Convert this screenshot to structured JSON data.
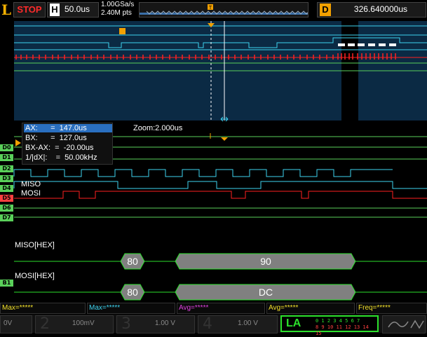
{
  "top": {
    "logo": "L",
    "run_state": "STOP",
    "hscale_label": "H",
    "hscale_value": "50.0us",
    "sample_rate": "1.00GSa/s",
    "memory_depth": "2.40M pts",
    "trigger_marker": "T",
    "delay_label": "D",
    "delay_value": "326.640000us"
  },
  "cursor": {
    "ax": "AX:      =  147.0us",
    "bx": "BX:      =  127.0us",
    "bxax": "BX-AX:  =  -20.00us",
    "inv": "1/|dX|:    =  50.00kHz"
  },
  "zoom": "Zoom:2.000us",
  "channels": {
    "d0": "D0",
    "d1": "D1",
    "d2": "D2",
    "d3": "D3",
    "d4": "D4",
    "d5": "D5",
    "d6": "D6",
    "d7": "D7",
    "b1": "B1"
  },
  "signals": {
    "miso": "MISO",
    "mosi": "MOSI"
  },
  "decode": {
    "miso_label": "MISO[HEX]",
    "mosi_label": "MOSI[HEX]",
    "miso_packets": [
      "80",
      "90"
    ],
    "mosi_packets": [
      "80",
      "DC"
    ]
  },
  "measurements": [
    "Max=*****",
    "Max=*****",
    "Avg=*****",
    "Avg=*****",
    "Freq=*****"
  ],
  "bottom": {
    "ch1_scale": "0V",
    "ch2_num": "2",
    "ch2_scale": "100mV",
    "ch3_num": "3",
    "ch3_scale": "1.00 V",
    "ch4_num": "4",
    "ch4_scale": "1.00 V",
    "la_label": "LA",
    "la_row1": "0 1 2 3 4 5 6 7",
    "la_row2": "8 9 10 11 12 13 14 15"
  },
  "colors": {
    "accent_green": "#2be02b",
    "signal_cyan": "#3ed4f0",
    "signal_red": "#ff2020",
    "trigger_orange": "#f2a000",
    "overview_bg": "#0b2a44"
  }
}
